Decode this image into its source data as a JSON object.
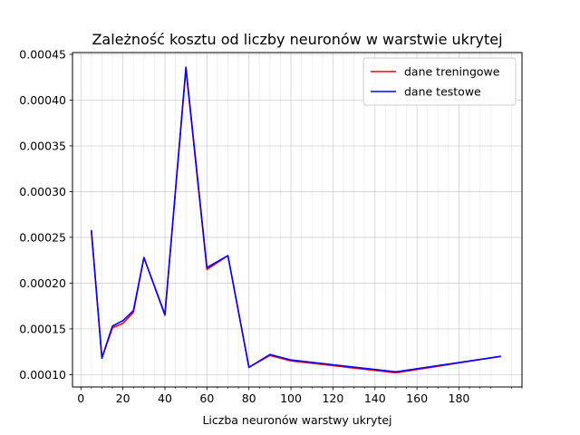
{
  "chart_data": {
    "type": "line",
    "title": "Zależność kosztu od liczby neuronów w warstwie ukrytej",
    "xlabel": "Liczba neuronów warstwy ukrytej",
    "ylabel": "",
    "xlim": [
      -4,
      210
    ],
    "ylim": [
      8.65e-05,
      0.000452
    ],
    "x_ticks": [
      0,
      20,
      40,
      60,
      80,
      100,
      120,
      140,
      160,
      180
    ],
    "x_tick_labels": [
      "0",
      "20",
      "40",
      "60",
      "80",
      "100",
      "120",
      "140",
      "160",
      "180"
    ],
    "y_ticks": [
      0.0001,
      0.00015,
      0.0002,
      0.00025,
      0.0003,
      0.00035,
      0.0004,
      0.00045
    ],
    "y_tick_labels": [
      "0.00010",
      "0.00015",
      "0.00020",
      "0.00025",
      "0.00030",
      "0.00035",
      "0.00040",
      "0.00045"
    ],
    "grid": true,
    "minor_grid": true,
    "legend_position": "top-right",
    "series": [
      {
        "name": "dane treningowe",
        "color": "#ff0000",
        "points": [
          [
            5,
            0.000256
          ],
          [
            10,
            0.000118
          ],
          [
            15,
            0.000151
          ],
          [
            20,
            0.000156
          ],
          [
            25,
            0.000168
          ],
          [
            30,
            0.000228
          ],
          [
            40,
            0.000166
          ],
          [
            50,
            0.000434
          ],
          [
            60,
            0.000215
          ],
          [
            70,
            0.00023
          ],
          [
            80,
            0.000108
          ],
          [
            90,
            0.000121
          ],
          [
            100,
            0.000115
          ],
          [
            150,
            0.000102
          ],
          [
            200,
            0.00012
          ]
        ]
      },
      {
        "name": "dane testowe",
        "color": "#0000ff",
        "points": [
          [
            5,
            0.000258
          ],
          [
            10,
            0.000118
          ],
          [
            15,
            0.000153
          ],
          [
            20,
            0.000159
          ],
          [
            25,
            0.00017
          ],
          [
            30,
            0.000228
          ],
          [
            40,
            0.000165
          ],
          [
            50,
            0.000436
          ],
          [
            60,
            0.000217
          ],
          [
            70,
            0.00023
          ],
          [
            80,
            0.000108
          ],
          [
            90,
            0.000122
          ],
          [
            100,
            0.000116
          ],
          [
            150,
            0.000103
          ],
          [
            200,
            0.00012
          ]
        ]
      }
    ]
  }
}
